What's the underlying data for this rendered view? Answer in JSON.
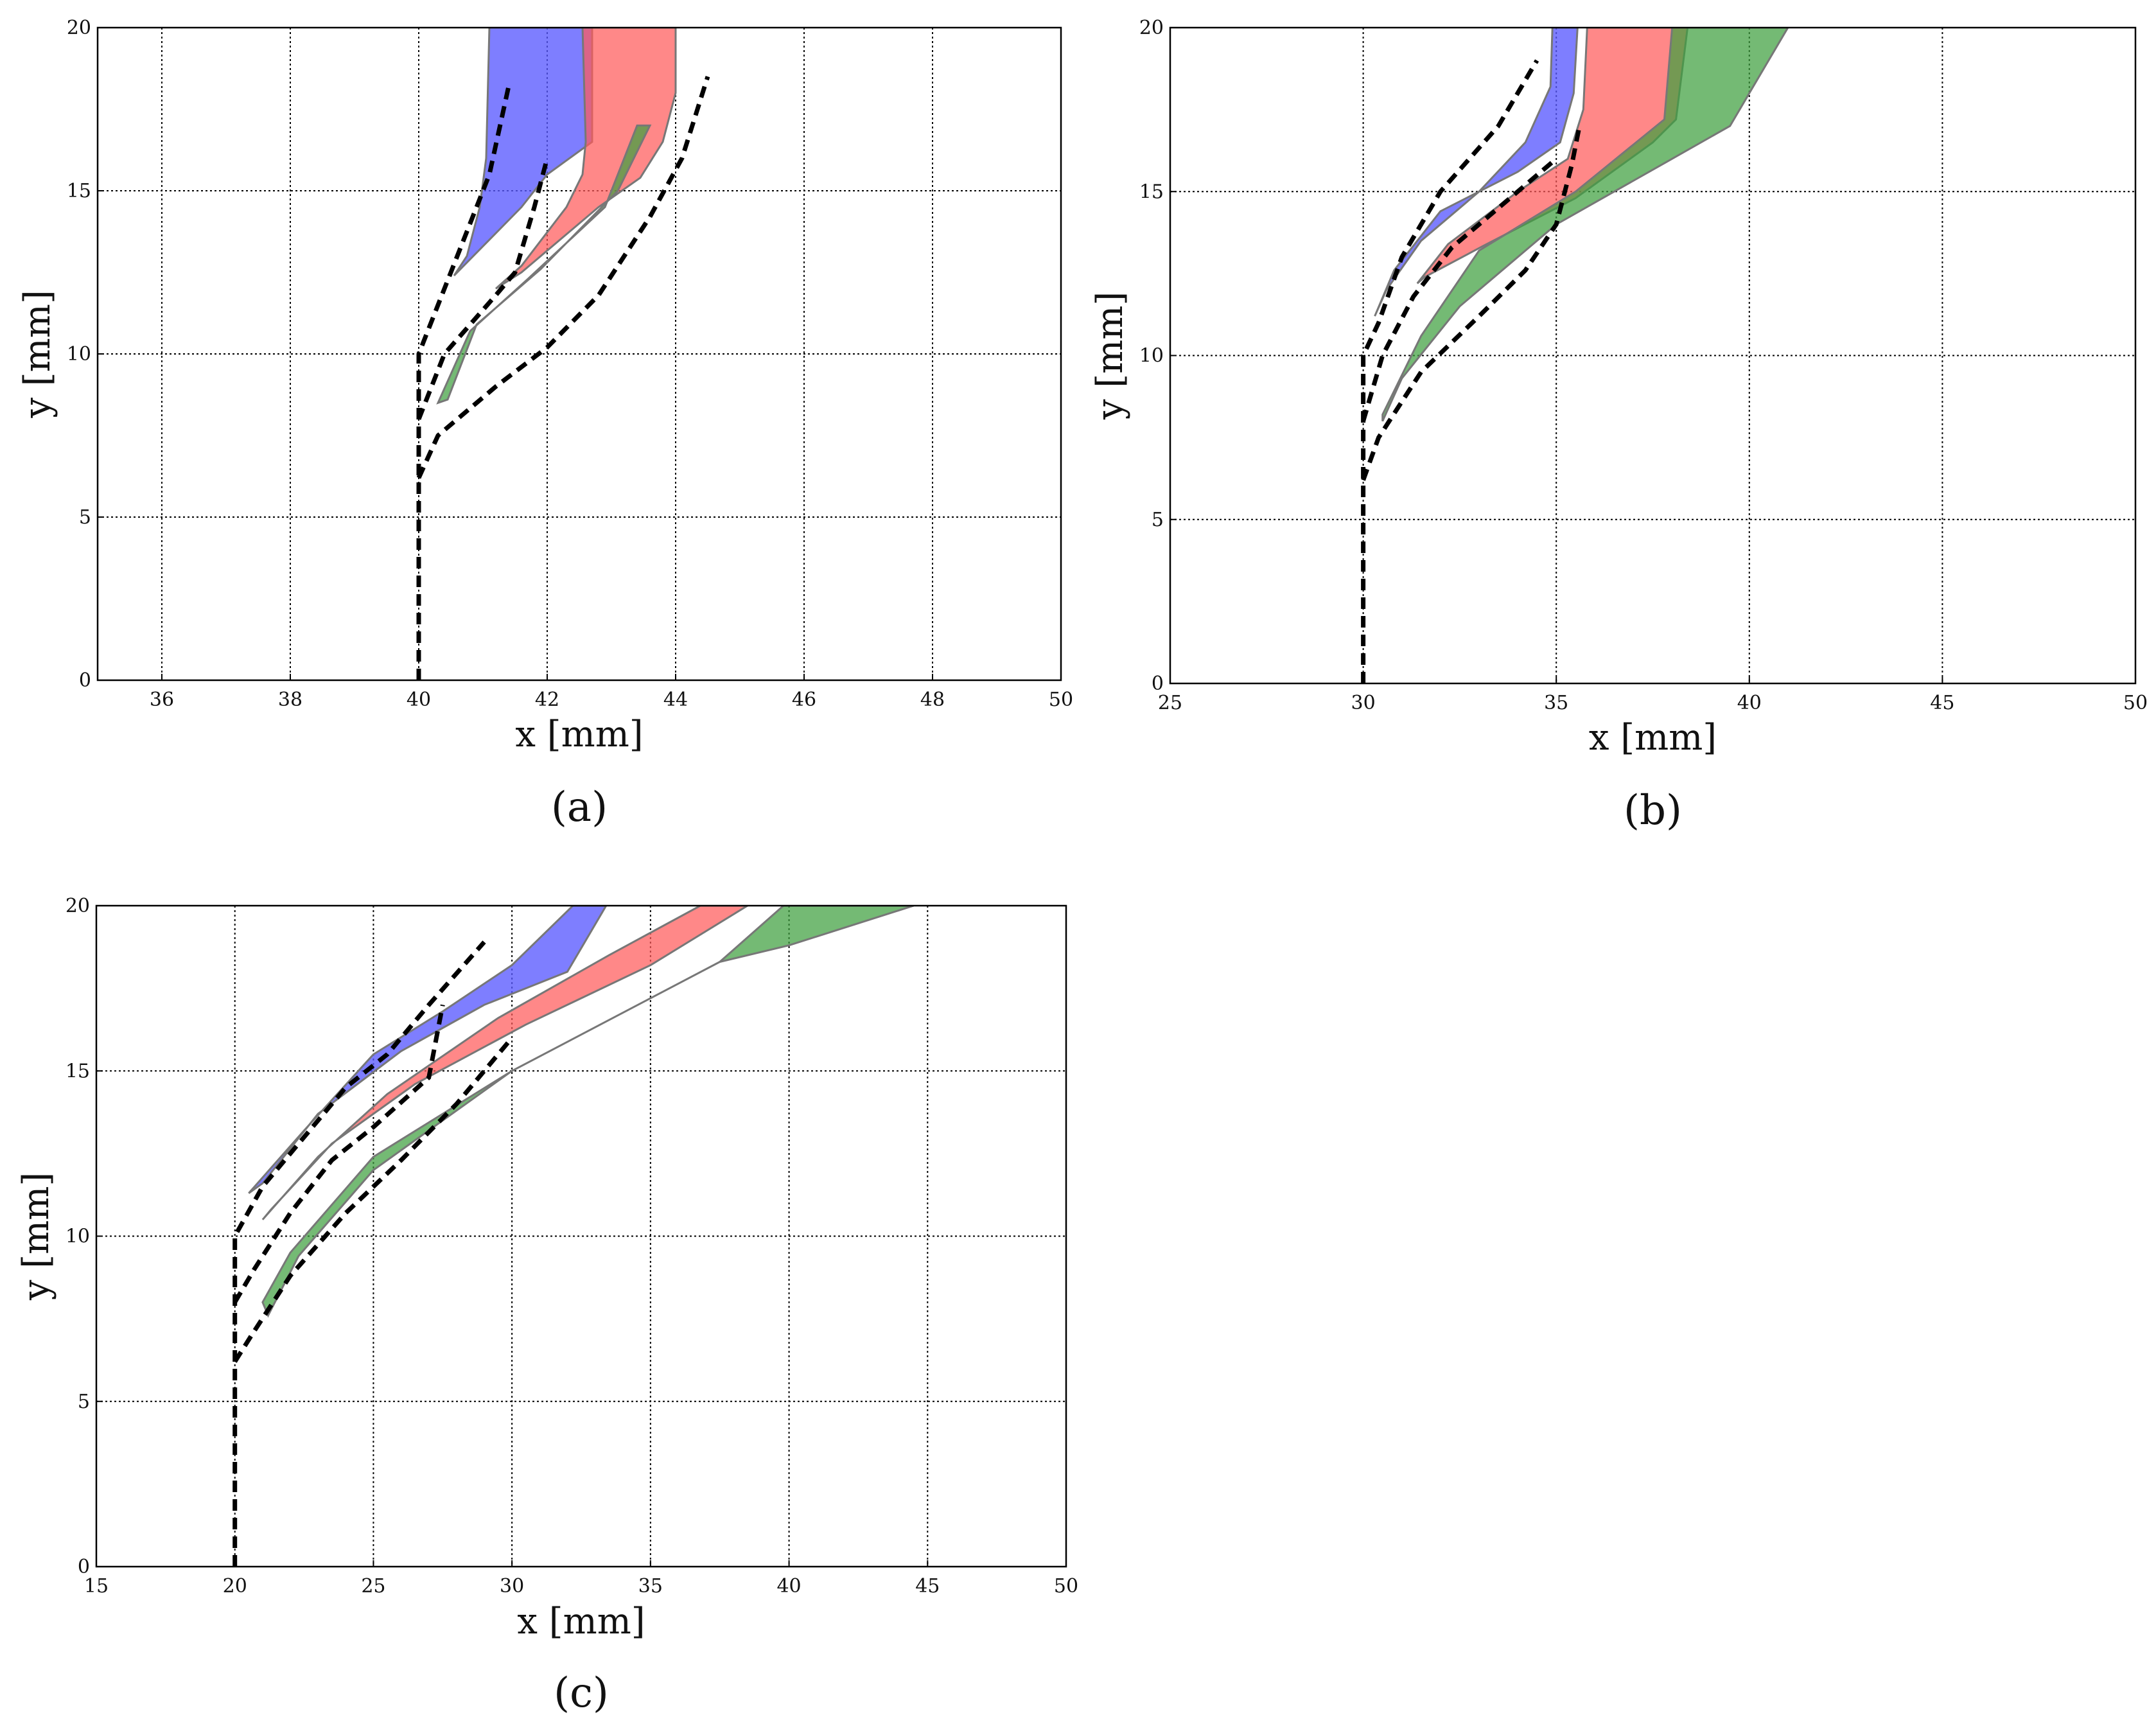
{
  "chart_data": [
    {
      "type": "area",
      "panel_label": "(a)",
      "xlabel": "x [mm]",
      "ylabel": "y [mm]",
      "xlim": [
        35,
        50
      ],
      "ylim": [
        0,
        20
      ],
      "xticks": [
        36,
        38,
        40,
        42,
        44,
        46,
        48,
        50
      ],
      "yticks": [
        0,
        5,
        10,
        15,
        20
      ],
      "grid": true,
      "bands": [
        {
          "name": "blue",
          "color": "#5a5aff",
          "opacity": 0.78,
          "left": [
            [
              41.1,
              20
            ],
            [
              41.05,
              16
            ],
            [
              40.95,
              14.5
            ],
            [
              40.75,
              13
            ],
            [
              40.55,
              12.4
            ]
          ],
          "right": [
            [
              42.7,
              20
            ],
            [
              42.7,
              16.5
            ],
            [
              42.0,
              15.5
            ],
            [
              41.6,
              14.5
            ]
          ]
        },
        {
          "name": "red",
          "color": "#ff5a5a",
          "opacity": 0.72,
          "left": [
            [
              42.55,
              20
            ],
            [
              42.6,
              16.5
            ],
            [
              42.55,
              15.5
            ],
            [
              42.3,
              14.5
            ],
            [
              41.6,
              12.7
            ],
            [
              41.2,
              12.0
            ]
          ],
          "right": [
            [
              44.0,
              20
            ],
            [
              44.0,
              18
            ],
            [
              43.8,
              16.5
            ],
            [
              43.45,
              15.4
            ],
            [
              42.8,
              14.5
            ],
            [
              41.6,
              12.5
            ]
          ]
        },
        {
          "name": "green",
          "color": "#3ea03e",
          "opacity": 0.72,
          "left": [
            [
              43.4,
              17
            ],
            [
              42.9,
              14.5
            ],
            [
              41.7,
              12.3
            ],
            [
              40.8,
              10.7
            ],
            [
              40.3,
              8.5
            ]
          ],
          "right": [
            [
              43.6,
              17
            ],
            [
              43.1,
              15
            ],
            [
              41.9,
              12.6
            ],
            [
              40.9,
              10.9
            ],
            [
              40.45,
              8.6
            ]
          ]
        }
      ],
      "dashed_lines": [
        [
          [
            40.0,
            0
          ],
          [
            40.0,
            10
          ],
          [
            40.3,
            11.5
          ],
          [
            40.8,
            14
          ],
          [
            41.1,
            15.5
          ],
          [
            41.4,
            18.2
          ]
        ],
        [
          [
            40.0,
            8.0
          ],
          [
            40.4,
            10
          ],
          [
            41.2,
            11.8
          ],
          [
            41.5,
            12.5
          ],
          [
            41.8,
            14.5
          ],
          [
            42.0,
            16
          ]
        ],
        [
          [
            40.0,
            6.2
          ],
          [
            40.3,
            7.5
          ],
          [
            41.2,
            9
          ],
          [
            42.0,
            10.2
          ],
          [
            42.8,
            11.8
          ],
          [
            43.6,
            14.2
          ],
          [
            44.1,
            16
          ],
          [
            44.5,
            18.5
          ]
        ]
      ]
    },
    {
      "type": "area",
      "panel_label": "(b)",
      "xlabel": "x [mm]",
      "ylabel": "y [mm]",
      "xlim": [
        25,
        50
      ],
      "ylim": [
        0,
        20
      ],
      "xticks": [
        25,
        30,
        35,
        40,
        45,
        50
      ],
      "yticks": [
        0,
        5,
        10,
        15,
        20
      ],
      "grid": true,
      "bands": [
        {
          "name": "blue",
          "color": "#5a5aff",
          "opacity": 0.78,
          "left": [
            [
              34.9,
              20
            ],
            [
              34.85,
              18.2
            ],
            [
              34.2,
              16.5
            ],
            [
              33.0,
              15.0
            ],
            [
              31.5,
              13.5
            ],
            [
              30.6,
              12.0
            ],
            [
              30.3,
              11.2
            ]
          ],
          "right": [
            [
              35.55,
              20
            ],
            [
              35.45,
              18
            ],
            [
              35.1,
              16.5
            ],
            [
              34.0,
              15.6
            ],
            [
              32.0,
              14.4
            ],
            [
              30.8,
              12.6
            ]
          ]
        },
        {
          "name": "red",
          "color": "#ff5a5a",
          "opacity": 0.72,
          "left": [
            [
              35.8,
              20
            ],
            [
              35.7,
              17.5
            ],
            [
              35.3,
              16.0
            ],
            [
              34.0,
              15.0
            ],
            [
              32.2,
              13.4
            ],
            [
              31.4,
              12.2
            ]
          ],
          "right": [
            [
              38.4,
              20
            ],
            [
              38.1,
              17.2
            ],
            [
              37.5,
              16.5
            ],
            [
              35.5,
              14.8
            ],
            [
              33.2,
              13.4
            ],
            [
              31.6,
              12.4
            ]
          ]
        },
        {
          "name": "green",
          "color": "#3ea03e",
          "opacity": 0.72,
          "left": [
            [
              38.0,
              20
            ],
            [
              37.8,
              17.2
            ],
            [
              35.5,
              15
            ],
            [
              33.0,
              13.2
            ],
            [
              31.5,
              10.6
            ],
            [
              30.5,
              8.2
            ]
          ],
          "right": [
            [
              41.0,
              20
            ],
            [
              39.5,
              17.0
            ],
            [
              38.0,
              16.0
            ],
            [
              35.0,
              14.0
            ],
            [
              32.5,
              11.5
            ],
            [
              31.0,
              9.3
            ],
            [
              30.5,
              8.0
            ]
          ]
        }
      ],
      "dashed_lines": [
        [
          [
            30.0,
            0
          ],
          [
            30.0,
            10
          ],
          [
            30.4,
            11
          ],
          [
            31.0,
            13
          ],
          [
            32.0,
            15
          ],
          [
            33.5,
            17
          ],
          [
            34.5,
            19
          ]
        ],
        [
          [
            30.0,
            8.0
          ],
          [
            30.5,
            10
          ],
          [
            31.3,
            11.8
          ],
          [
            32.3,
            13.3
          ],
          [
            33.8,
            14.8
          ],
          [
            35.0,
            16
          ]
        ],
        [
          [
            30.0,
            6.2
          ],
          [
            30.4,
            7.5
          ],
          [
            31.5,
            9.5
          ],
          [
            33.0,
            11.2
          ],
          [
            34.2,
            12.6
          ],
          [
            35.0,
            14.0
          ],
          [
            35.4,
            15.8
          ],
          [
            35.6,
            17
          ]
        ]
      ]
    },
    {
      "type": "area",
      "panel_label": "(c)",
      "xlabel": "x [mm]",
      "ylabel": "y [mm]",
      "xlim": [
        15,
        50
      ],
      "ylim": [
        0,
        20
      ],
      "xticks": [
        15,
        20,
        25,
        30,
        35,
        40,
        45,
        50
      ],
      "yticks": [
        0,
        5,
        10,
        15,
        20
      ],
      "grid": true,
      "bands": [
        {
          "name": "blue",
          "color": "#5a5aff",
          "opacity": 0.78,
          "left": [
            [
              32.2,
              20
            ],
            [
              30.0,
              18.2
            ],
            [
              27.5,
              16.8
            ],
            [
              25.0,
              15.5
            ],
            [
              22.5,
              13.2
            ],
            [
              20.5,
              11.3
            ]
          ],
          "right": [
            [
              33.4,
              20
            ],
            [
              32.0,
              18.0
            ],
            [
              29.0,
              17.0
            ],
            [
              26.0,
              15.6
            ],
            [
              23.0,
              13.7
            ],
            [
              21.0,
              11.6
            ]
          ]
        },
        {
          "name": "red",
          "color": "#ff5a5a",
          "opacity": 0.72,
          "left": [
            [
              36.8,
              20
            ],
            [
              33.5,
              18.5
            ],
            [
              29.5,
              16.6
            ],
            [
              25.5,
              14.3
            ],
            [
              23.0,
              12.4
            ],
            [
              21.0,
              10.5
            ]
          ],
          "right": [
            [
              38.5,
              20
            ],
            [
              35.0,
              18.2
            ],
            [
              30.5,
              16.4
            ],
            [
              26.5,
              14.6
            ],
            [
              23.5,
              12.8
            ],
            [
              21.3,
              10.8
            ]
          ]
        },
        {
          "name": "green",
          "color": "#3ea03e",
          "opacity": 0.72,
          "left": [
            [
              39.8,
              20
            ],
            [
              37.5,
              18.3
            ],
            [
              35.0,
              17.2
            ],
            [
              30.0,
              15.0
            ],
            [
              25.0,
              12.4
            ],
            [
              22.0,
              9.5
            ],
            [
              21.0,
              8.0
            ]
          ],
          "right": [
            [
              44.5,
              20
            ],
            [
              40.0,
              18.8
            ],
            [
              37.5,
              18.3
            ],
            [
              35.0,
              17.2
            ],
            [
              30.0,
              15.0
            ],
            [
              25.0,
              12.0
            ],
            [
              22.3,
              9.4
            ],
            [
              21.2,
              7.6
            ]
          ]
        }
      ],
      "dashed_lines": [
        [
          [
            20.0,
            0
          ],
          [
            20.0,
            10
          ],
          [
            21.0,
            11.5
          ],
          [
            22.5,
            13
          ],
          [
            24.0,
            14.5
          ],
          [
            25.5,
            15.5
          ],
          [
            27.0,
            17
          ],
          [
            29.0,
            18.9
          ]
        ],
        [
          [
            20.0,
            8.0
          ],
          [
            20.7,
            9
          ],
          [
            22.0,
            10.7
          ],
          [
            23.5,
            12.3
          ],
          [
            25.0,
            13.3
          ],
          [
            27.0,
            14.8
          ],
          [
            27.5,
            17
          ]
        ],
        [
          [
            20.0,
            6.2
          ],
          [
            20.6,
            7
          ],
          [
            22.0,
            8.8
          ],
          [
            24.0,
            10.7
          ],
          [
            26.0,
            12.3
          ],
          [
            28.0,
            14.0
          ],
          [
            30.0,
            16
          ]
        ]
      ]
    }
  ]
}
